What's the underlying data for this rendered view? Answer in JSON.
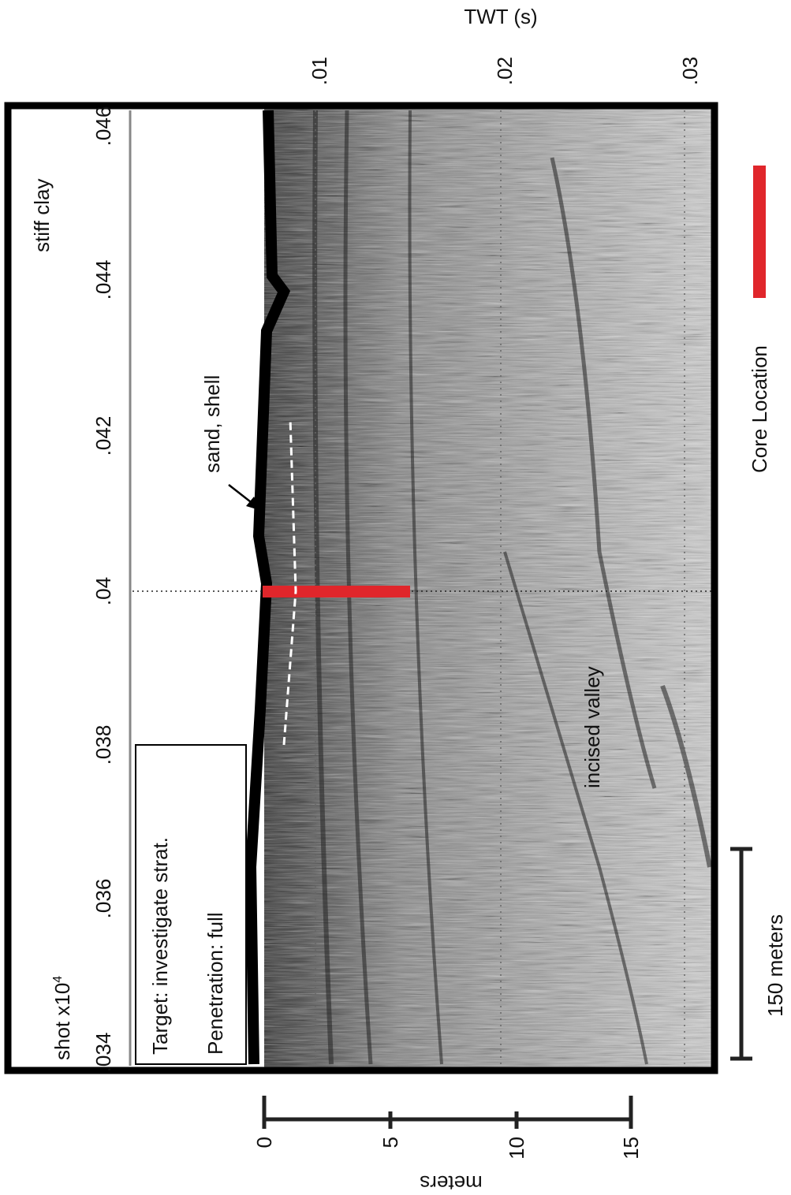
{
  "figure": {
    "twt_axis": {
      "title": "TWT (s)",
      "ticks": [
        ".01",
        ".02",
        ".03"
      ]
    },
    "shot_axis": {
      "title": "shot x10",
      "exponent": "4",
      "ticks": [
        ".034",
        ".036",
        ".038",
        ".04",
        ".042",
        ".044",
        ".046"
      ]
    },
    "annotations": {
      "top": "stiff clay",
      "arrow": "sand, shell",
      "valley": "incised valley"
    },
    "info_box": {
      "target": "Target: investigate strat.",
      "penetration": "Penetration: full"
    },
    "legend": {
      "core": "Core Location"
    },
    "scale_bar": "150 meters",
    "depth_scale": {
      "title": "meters",
      "ticks": [
        0,
        5,
        10,
        15
      ]
    }
  }
}
